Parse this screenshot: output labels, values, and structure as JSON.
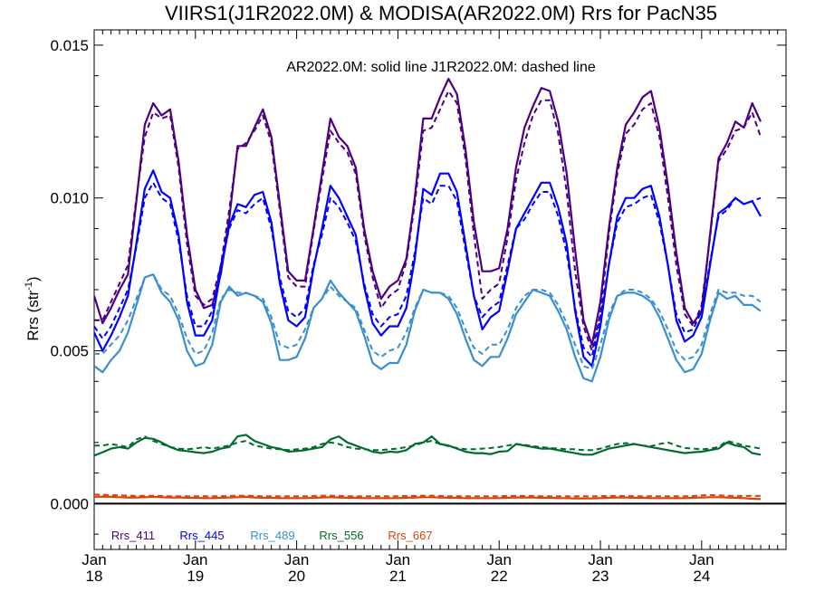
{
  "chart_data": {
    "type": "line",
    "title": "VIIRS1(J1R2022.0M) & MODISA(AR2022.0M)  Rrs for PacN35",
    "note": "AR2022.0M: solid line   J1R2022.0M: dashed line",
    "ylabel_main": "Rrs (str",
    "ylabel_sup": "-1",
    "ylabel_tail": ")",
    "xlabel": "",
    "xlim": [
      0,
      82
    ],
    "ylim": [
      -0.0015,
      0.0155
    ],
    "y_ticks": [
      0.0,
      0.005,
      0.01,
      0.015
    ],
    "y_tick_labels": [
      "0.000",
      "0.005",
      "0.010",
      "0.015"
    ],
    "x_ticks": [
      {
        "month": 0,
        "top": "Jan",
        "bottom": "18"
      },
      {
        "month": 12,
        "top": "Jan",
        "bottom": "19"
      },
      {
        "month": 24,
        "top": "Jan",
        "bottom": "20"
      },
      {
        "month": 36,
        "top": "Jan",
        "bottom": "21"
      },
      {
        "month": 48,
        "top": "Jan",
        "bottom": "22"
      },
      {
        "month": 60,
        "top": "Jan",
        "bottom": "23"
      },
      {
        "month": 72,
        "top": "Jan",
        "bottom": "24"
      }
    ],
    "zero_line": true,
    "grid": false,
    "legend_position": "bottom-left",
    "series": [
      {
        "name": "Rrs_411",
        "color": "#4b0082",
        "solid": [
          0.0068,
          0.0059,
          0.0064,
          0.007,
          0.0075,
          0.0099,
          0.0124,
          0.0131,
          0.0127,
          0.0129,
          0.0112,
          0.0088,
          0.007,
          0.0064,
          0.0065,
          0.0075,
          0.0093,
          0.0117,
          0.0117,
          0.0123,
          0.0129,
          0.012,
          0.0098,
          0.0076,
          0.0073,
          0.0073,
          0.009,
          0.0108,
          0.0126,
          0.012,
          0.0117,
          0.011,
          0.009,
          0.0076,
          0.0067,
          0.0071,
          0.0073,
          0.008,
          0.01,
          0.0126,
          0.0126,
          0.0133,
          0.0139,
          0.0134,
          0.0116,
          0.0092,
          0.0076,
          0.0076,
          0.0077,
          0.009,
          0.011,
          0.0123,
          0.013,
          0.0136,
          0.0135,
          0.0125,
          0.0108,
          0.0083,
          0.006,
          0.0052,
          0.0066,
          0.009,
          0.011,
          0.0124,
          0.0128,
          0.0133,
          0.0135,
          0.0123,
          0.0104,
          0.0082,
          0.0064,
          0.0059,
          0.0063,
          0.0088,
          0.0113,
          0.0118,
          0.0125,
          0.0123,
          0.0131,
          0.0125
        ],
        "dashed": [
          0.006,
          0.006,
          0.0066,
          0.0072,
          0.0078,
          0.01,
          0.012,
          0.0128,
          0.0126,
          0.0127,
          0.011,
          0.0085,
          0.0068,
          0.0065,
          0.0067,
          0.0078,
          0.0096,
          0.0116,
          0.0118,
          0.0122,
          0.0127,
          0.0118,
          0.0096,
          0.0074,
          0.0071,
          0.0071,
          0.0089,
          0.0106,
          0.0122,
          0.0118,
          0.0115,
          0.0108,
          0.0088,
          0.0074,
          0.0064,
          0.0068,
          0.007,
          0.0079,
          0.0098,
          0.0122,
          0.0123,
          0.0129,
          0.0135,
          0.0131,
          0.0113,
          0.0088,
          0.0067,
          0.007,
          0.0072,
          0.0087,
          0.0106,
          0.0118,
          0.0127,
          0.0132,
          0.0132,
          0.0121,
          0.0102,
          0.0076,
          0.0058,
          0.005,
          0.0062,
          0.0088,
          0.0108,
          0.0121,
          0.0124,
          0.0129,
          0.0131,
          0.012,
          0.01,
          0.0078,
          0.0062,
          0.0058,
          0.0065,
          0.0087,
          0.0112,
          0.0116,
          0.0122,
          0.0123,
          0.0128,
          0.012
        ]
      },
      {
        "name": "Rrs_445",
        "color": "#0000ff",
        "solid": [
          0.0056,
          0.005,
          0.0055,
          0.0061,
          0.0068,
          0.0085,
          0.0103,
          0.0109,
          0.0102,
          0.01,
          0.0088,
          0.0066,
          0.0055,
          0.0055,
          0.006,
          0.0076,
          0.0091,
          0.0098,
          0.0097,
          0.0101,
          0.0102,
          0.0092,
          0.0072,
          0.006,
          0.0058,
          0.0061,
          0.0077,
          0.009,
          0.0104,
          0.01,
          0.0094,
          0.0088,
          0.0071,
          0.0059,
          0.0055,
          0.0058,
          0.0058,
          0.0064,
          0.008,
          0.0103,
          0.0101,
          0.0108,
          0.0108,
          0.0102,
          0.0085,
          0.0068,
          0.0057,
          0.0061,
          0.0063,
          0.0076,
          0.009,
          0.0095,
          0.01,
          0.0105,
          0.0105,
          0.0097,
          0.0085,
          0.0063,
          0.0048,
          0.0045,
          0.0058,
          0.0078,
          0.0094,
          0.01,
          0.01,
          0.0103,
          0.0104,
          0.0094,
          0.0078,
          0.006,
          0.0053,
          0.0055,
          0.0061,
          0.0078,
          0.0095,
          0.0097,
          0.01,
          0.0098,
          0.0099,
          0.0094
        ],
        "dashed": [
          0.0058,
          0.0054,
          0.0058,
          0.0064,
          0.007,
          0.0084,
          0.01,
          0.0105,
          0.01,
          0.0098,
          0.0086,
          0.0068,
          0.0058,
          0.0058,
          0.0063,
          0.0078,
          0.009,
          0.0096,
          0.0095,
          0.0098,
          0.01,
          0.009,
          0.0074,
          0.0063,
          0.0061,
          0.0064,
          0.0078,
          0.0088,
          0.01,
          0.0097,
          0.0092,
          0.0086,
          0.0072,
          0.0062,
          0.0058,
          0.0061,
          0.0062,
          0.0068,
          0.0082,
          0.01,
          0.0098,
          0.0104,
          0.0104,
          0.0099,
          0.0083,
          0.0068,
          0.0061,
          0.0064,
          0.0066,
          0.0078,
          0.009,
          0.0093,
          0.0098,
          0.0102,
          0.0102,
          0.0094,
          0.0082,
          0.0064,
          0.0051,
          0.0048,
          0.0061,
          0.0078,
          0.0092,
          0.0097,
          0.0098,
          0.01,
          0.0101,
          0.0092,
          0.0078,
          0.0062,
          0.0056,
          0.0057,
          0.0063,
          0.0079,
          0.0094,
          0.0096,
          0.01,
          0.0098,
          0.0099,
          0.01
        ]
      },
      {
        "name": "Rrs_489",
        "color": "#3a8fce",
        "solid": [
          0.0045,
          0.0043,
          0.0047,
          0.005,
          0.0056,
          0.0065,
          0.0074,
          0.0075,
          0.0069,
          0.0066,
          0.006,
          0.005,
          0.0045,
          0.0046,
          0.0052,
          0.0066,
          0.0071,
          0.0068,
          0.0069,
          0.0068,
          0.0066,
          0.0059,
          0.0047,
          0.0047,
          0.0048,
          0.0054,
          0.0064,
          0.0067,
          0.0073,
          0.0069,
          0.0066,
          0.0063,
          0.0055,
          0.0046,
          0.0044,
          0.0046,
          0.0046,
          0.0052,
          0.0063,
          0.007,
          0.0069,
          0.0069,
          0.0067,
          0.0062,
          0.0054,
          0.0047,
          0.0045,
          0.0048,
          0.0048,
          0.0054,
          0.0062,
          0.0066,
          0.007,
          0.0069,
          0.0068,
          0.0063,
          0.0057,
          0.0048,
          0.0041,
          0.004,
          0.0048,
          0.006,
          0.0068,
          0.0069,
          0.0069,
          0.0068,
          0.0066,
          0.0061,
          0.0054,
          0.0047,
          0.0043,
          0.0044,
          0.0049,
          0.006,
          0.0069,
          0.0067,
          0.0068,
          0.0065,
          0.0065,
          0.0063
        ],
        "dashed": [
          0.0049,
          0.0049,
          0.0052,
          0.0055,
          0.006,
          0.0067,
          0.0074,
          0.0075,
          0.007,
          0.0068,
          0.0062,
          0.0054,
          0.0049,
          0.005,
          0.0056,
          0.0067,
          0.007,
          0.0069,
          0.0069,
          0.0068,
          0.0067,
          0.0061,
          0.0052,
          0.0051,
          0.0052,
          0.0057,
          0.0064,
          0.0067,
          0.0071,
          0.0068,
          0.0066,
          0.0064,
          0.0057,
          0.005,
          0.0048,
          0.005,
          0.0051,
          0.0056,
          0.0064,
          0.007,
          0.0069,
          0.0069,
          0.0068,
          0.0064,
          0.0057,
          0.0051,
          0.0049,
          0.0052,
          0.0052,
          0.0057,
          0.0064,
          0.0068,
          0.007,
          0.007,
          0.0069,
          0.0065,
          0.0059,
          0.0052,
          0.0045,
          0.0044,
          0.0052,
          0.0062,
          0.0068,
          0.007,
          0.007,
          0.0069,
          0.0067,
          0.0063,
          0.0057,
          0.005,
          0.0047,
          0.0048,
          0.0052,
          0.0062,
          0.007,
          0.0069,
          0.0069,
          0.0068,
          0.0068,
          0.0066
        ]
      },
      {
        "name": "Rrs_556",
        "color": "#006d2c",
        "solid": [
          0.00157,
          0.00168,
          0.0018,
          0.00185,
          0.0018,
          0.002,
          0.00215,
          0.00212,
          0.002,
          0.00185,
          0.00175,
          0.00172,
          0.00168,
          0.00165,
          0.0017,
          0.0018,
          0.00185,
          0.0022,
          0.00225,
          0.00205,
          0.00195,
          0.00185,
          0.0018,
          0.0017,
          0.00172,
          0.00175,
          0.0018,
          0.00185,
          0.0021,
          0.0022,
          0.002,
          0.0019,
          0.0018,
          0.0017,
          0.00165,
          0.0017,
          0.00168,
          0.00175,
          0.00195,
          0.002,
          0.0022,
          0.00195,
          0.0019,
          0.0018,
          0.0017,
          0.00165,
          0.00165,
          0.00162,
          0.0017,
          0.00172,
          0.00195,
          0.0019,
          0.00185,
          0.0018,
          0.0018,
          0.00175,
          0.0017,
          0.00165,
          0.0016,
          0.0016,
          0.0017,
          0.0018,
          0.00185,
          0.0019,
          0.00195,
          0.0019,
          0.00185,
          0.0018,
          0.00175,
          0.0017,
          0.00165,
          0.00168,
          0.0017,
          0.00175,
          0.0018,
          0.002,
          0.0019,
          0.00185,
          0.00165,
          0.0016
        ],
        "dashed": [
          0.0019,
          0.0019,
          0.00195,
          0.0019,
          0.00185,
          0.0021,
          0.0022,
          0.00205,
          0.00195,
          0.00185,
          0.0018,
          0.00178,
          0.0018,
          0.00185,
          0.0018,
          0.00185,
          0.0019,
          0.002,
          0.00205,
          0.0019,
          0.00185,
          0.0018,
          0.00178,
          0.00175,
          0.00178,
          0.0018,
          0.00185,
          0.00195,
          0.002,
          0.00195,
          0.00185,
          0.0018,
          0.00178,
          0.00175,
          0.00175,
          0.00178,
          0.0018,
          0.00185,
          0.0019,
          0.002,
          0.00205,
          0.00195,
          0.00188,
          0.00182,
          0.00178,
          0.00178,
          0.0018,
          0.00182,
          0.00185,
          0.0019,
          0.00195,
          0.00192,
          0.00188,
          0.00185,
          0.00182,
          0.0018,
          0.00178,
          0.00178,
          0.00175,
          0.00175,
          0.0018,
          0.00188,
          0.00195,
          0.00198,
          0.00195,
          0.0019,
          0.00188,
          0.00195,
          0.002,
          0.0019,
          0.00182,
          0.0018,
          0.00178,
          0.0018,
          0.00185,
          0.00205,
          0.00198,
          0.0019,
          0.00185,
          0.0018
        ]
      },
      {
        "name": "Rrs_667",
        "color": "#e0400a",
        "solid": [
          0.00022,
          0.00023,
          0.00022,
          0.00021,
          0.0002,
          0.0002,
          0.00021,
          0.00022,
          0.00021,
          0.0002,
          0.0002,
          0.00019,
          0.00019,
          0.00018,
          0.00018,
          0.00019,
          0.0002,
          0.00021,
          0.00022,
          0.0002,
          0.00019,
          0.00019,
          0.00018,
          0.00018,
          0.00018,
          0.00018,
          0.00019,
          0.0002,
          0.00021,
          0.0002,
          0.00019,
          0.00019,
          0.00018,
          0.00018,
          0.00018,
          0.00018,
          0.00018,
          0.00019,
          0.0002,
          0.00021,
          0.00021,
          0.0002,
          0.00019,
          0.00019,
          0.00018,
          0.00018,
          0.00018,
          0.00018,
          0.00018,
          0.00019,
          0.0002,
          0.0002,
          0.0002,
          0.00019,
          0.00019,
          0.00018,
          0.00018,
          0.00017,
          0.00017,
          0.00017,
          0.00018,
          0.00019,
          0.0002,
          0.0002,
          0.00019,
          0.00019,
          0.00018,
          0.00018,
          0.00018,
          0.00018,
          0.00018,
          0.00019,
          0.0002,
          0.00021,
          0.00021,
          0.0002,
          0.00019,
          0.00018,
          0.00016,
          0.00015
        ],
        "dashed": [
          0.0003,
          0.00029,
          0.00028,
          0.00027,
          0.00026,
          0.00025,
          0.00025,
          0.00026,
          0.00025,
          0.00024,
          0.00024,
          0.00024,
          0.00024,
          0.00024,
          0.00024,
          0.00024,
          0.00025,
          0.00026,
          0.00026,
          0.00025,
          0.00024,
          0.00024,
          0.00024,
          0.00024,
          0.00024,
          0.00024,
          0.00025,
          0.00026,
          0.00026,
          0.00025,
          0.00024,
          0.00024,
          0.00024,
          0.00024,
          0.00024,
          0.00024,
          0.00024,
          0.00025,
          0.00025,
          0.00026,
          0.00026,
          0.00025,
          0.00024,
          0.00024,
          0.00024,
          0.00024,
          0.00024,
          0.00024,
          0.00024,
          0.00025,
          0.00025,
          0.00025,
          0.00025,
          0.00024,
          0.00024,
          0.00024,
          0.00024,
          0.00024,
          0.00024,
          0.00024,
          0.00024,
          0.00025,
          0.00025,
          0.00025,
          0.00024,
          0.00024,
          0.00024,
          0.00024,
          0.00024,
          0.00024,
          0.00024,
          0.00025,
          0.00027,
          0.00028,
          0.00027,
          0.00026,
          0.00025,
          0.00025,
          0.00025,
          0.00025
        ]
      }
    ]
  }
}
